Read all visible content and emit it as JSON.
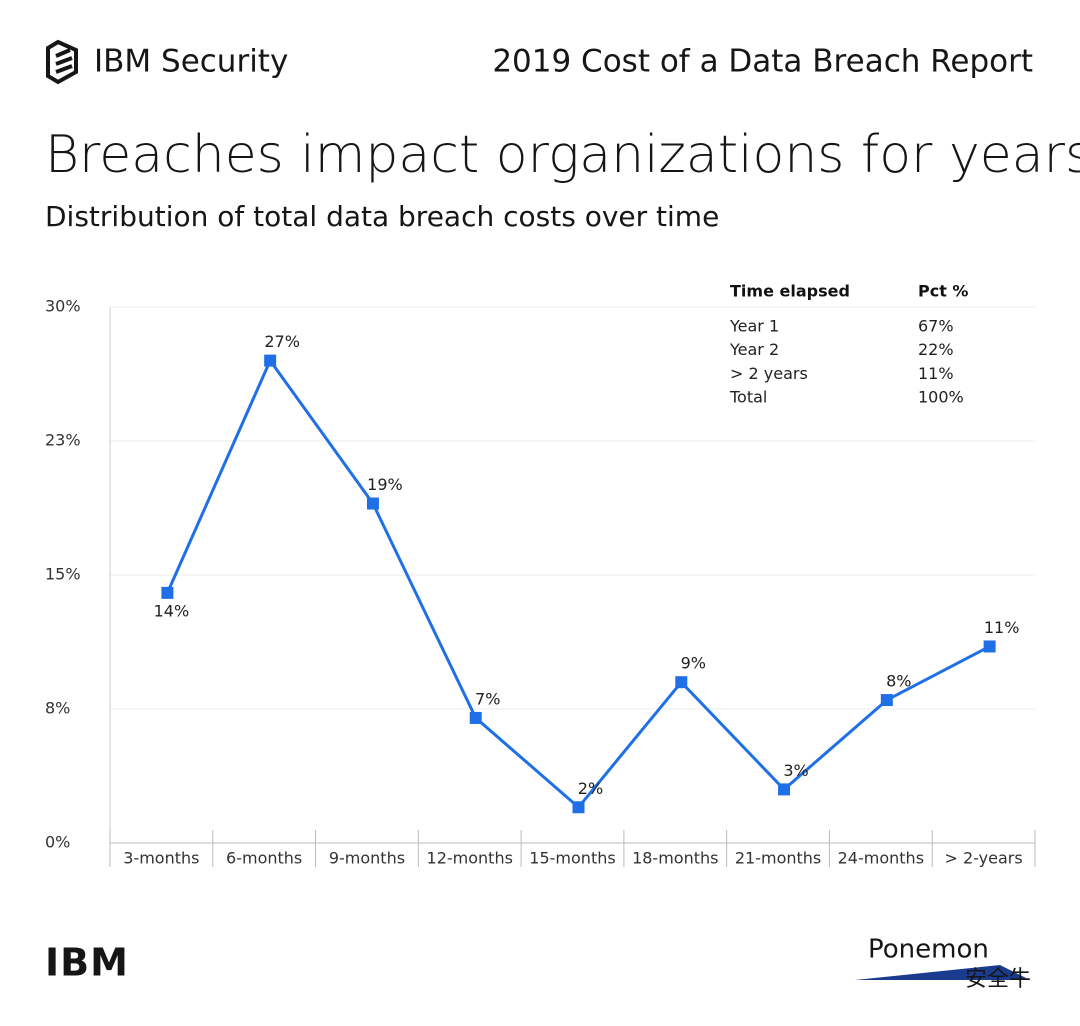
{
  "header": {
    "brand": "IBM Security",
    "report": "2019 Cost of a Data Breach Report"
  },
  "chart_data": {
    "type": "line",
    "title": "Breaches impact organizations for years",
    "subtitle": "Distribution of total data breach costs over time",
    "categories": [
      "3-months",
      "6-months",
      "9-months",
      "12-months",
      "15-months",
      "18-months",
      "21-months",
      "24-months",
      "> 2-years"
    ],
    "values": [
      14,
      27,
      19,
      7,
      2,
      9,
      3,
      8,
      11
    ],
    "value_labels": [
      "14%",
      "27%",
      "19%",
      "7%",
      "2%",
      "9%",
      "3%",
      "8%",
      "11%"
    ],
    "color": "#1f70e6",
    "ylim": [
      0,
      30
    ],
    "yticks": [
      {
        "value": 0,
        "label": "0%"
      },
      {
        "value": 7.5,
        "label": "8%"
      },
      {
        "value": 15,
        "label": "15%"
      },
      {
        "value": 22.5,
        "label": "23%"
      },
      {
        "value": 30,
        "label": "30%"
      }
    ],
    "grid": true
  },
  "table": {
    "columns": [
      "Time elapsed",
      "Pct %"
    ],
    "rows": [
      [
        "Year 1",
        "67%"
      ],
      [
        "Year 2",
        "22%"
      ],
      [
        "> 2 years",
        "11%"
      ],
      [
        "Total",
        "100%"
      ]
    ]
  },
  "footer": {
    "left": "IBM",
    "right": "Ponemon",
    "watermark": "安全牛"
  }
}
